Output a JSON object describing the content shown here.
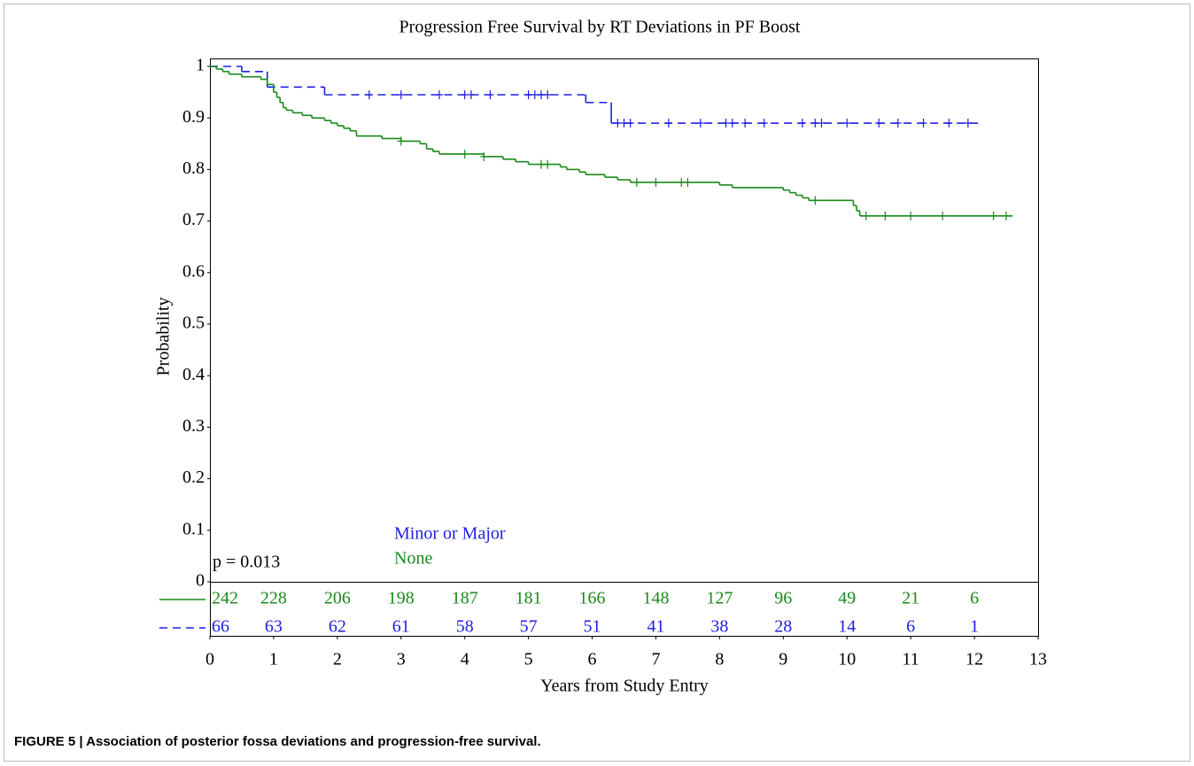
{
  "chart_data": {
    "type": "km",
    "title": "Progression Free Survival by RT Deviations in PF Boost",
    "xlabel": "Years from Study Entry",
    "ylabel": "Probability",
    "annotation": "p = 0.013",
    "caption": "FIGURE 5 | Association of posterior fossa deviations and progression-free survival.",
    "xlim": [
      0,
      13
    ],
    "ylim": [
      0,
      1
    ],
    "xticks": [
      0,
      1,
      2,
      3,
      4,
      5,
      6,
      7,
      8,
      9,
      10,
      11,
      12,
      13
    ],
    "yticks": [
      0,
      0.1,
      0.2,
      0.3,
      0.4,
      0.5,
      0.6,
      0.7,
      0.8,
      0.9,
      1
    ],
    "risk_times": [
      0,
      1,
      2,
      3,
      4,
      5,
      6,
      7,
      8,
      9,
      10,
      11,
      12
    ],
    "series": [
      {
        "name": "Minor or Major",
        "color": "#1f1fe0",
        "dash": true,
        "x": [
          0,
          0.5,
          0.9,
          1.8,
          5.9,
          6.3,
          12.1
        ],
        "values": [
          1.0,
          0.99,
          0.96,
          0.945,
          0.93,
          0.89,
          0.89
        ],
        "censor_x": [
          2.5,
          3.0,
          3.6,
          4.0,
          4.1,
          4.4,
          5.0,
          5.1,
          5.2,
          5.3,
          6.4,
          6.5,
          6.6,
          7.2,
          7.7,
          8.1,
          8.2,
          8.4,
          8.7,
          9.3,
          9.5,
          9.6,
          10.0,
          10.5,
          10.8,
          11.2,
          11.6,
          11.9
        ],
        "at_risk": [
          66,
          63,
          62,
          61,
          58,
          57,
          51,
          41,
          38,
          28,
          14,
          6,
          1
        ]
      },
      {
        "name": "None",
        "color": "#1a8a1a",
        "dash": false,
        "x": [
          0,
          0.1,
          0.2,
          0.3,
          0.5,
          0.8,
          0.9,
          1.0,
          1.05,
          1.1,
          1.15,
          1.2,
          1.3,
          1.45,
          1.6,
          1.8,
          1.9,
          2.0,
          2.1,
          2.2,
          2.3,
          2.7,
          3.0,
          3.3,
          3.4,
          3.5,
          3.6,
          4.3,
          4.6,
          4.8,
          5.0,
          5.5,
          5.6,
          5.8,
          5.9,
          6.2,
          6.4,
          6.6,
          8.0,
          8.2,
          9.0,
          9.1,
          9.2,
          9.3,
          9.4,
          10.1,
          10.15,
          10.2,
          12.6
        ],
        "values": [
          1.0,
          0.995,
          0.99,
          0.985,
          0.98,
          0.975,
          0.965,
          0.95,
          0.94,
          0.93,
          0.92,
          0.915,
          0.91,
          0.905,
          0.9,
          0.895,
          0.89,
          0.885,
          0.88,
          0.875,
          0.865,
          0.86,
          0.855,
          0.85,
          0.84,
          0.835,
          0.83,
          0.825,
          0.82,
          0.815,
          0.81,
          0.805,
          0.8,
          0.795,
          0.79,
          0.785,
          0.78,
          0.775,
          0.77,
          0.765,
          0.76,
          0.755,
          0.75,
          0.745,
          0.74,
          0.73,
          0.72,
          0.71,
          0.71
        ],
        "censor_x": [
          3.0,
          4.0,
          4.3,
          5.2,
          5.3,
          6.7,
          7.0,
          7.4,
          7.5,
          9.5,
          10.3,
          10.6,
          11.0,
          11.5,
          12.3,
          12.5
        ],
        "at_risk": [
          242,
          228,
          206,
          198,
          187,
          181,
          166,
          148,
          127,
          96,
          49,
          21,
          6
        ]
      }
    ]
  }
}
